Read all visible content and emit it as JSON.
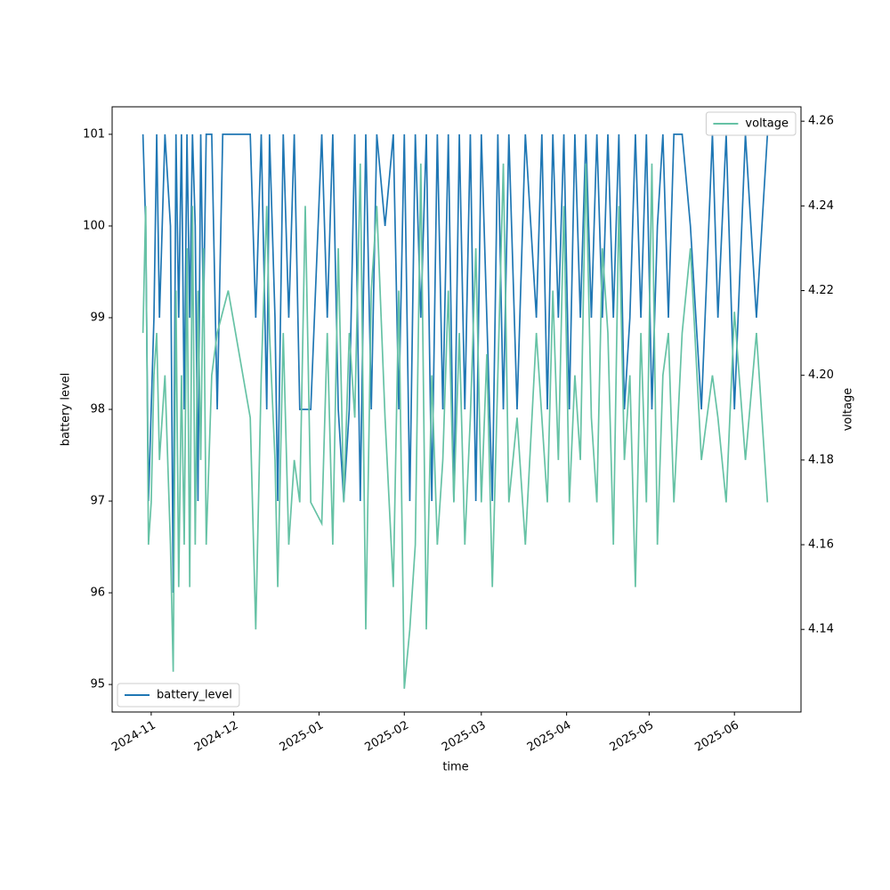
{
  "chart_data": {
    "type": "line",
    "xlabel": "time",
    "ylabel": "battery level",
    "y2label": "voltage",
    "xlim": [
      -14.2,
      236.2
    ],
    "xticks": [
      {
        "value": 0,
        "label": "2024-11"
      },
      {
        "value": 30,
        "label": "2024-12"
      },
      {
        "value": 61,
        "label": "2025-01"
      },
      {
        "value": 92,
        "label": "2025-02"
      },
      {
        "value": 120,
        "label": "2025-03"
      },
      {
        "value": 151,
        "label": "2025-04"
      },
      {
        "value": 181,
        "label": "2025-05"
      },
      {
        "value": 212,
        "label": "2025-06"
      }
    ],
    "ylim": [
      94.7,
      101.3
    ],
    "yticks": [
      95,
      96,
      97,
      98,
      99,
      100,
      101
    ],
    "y2lim": [
      4.1205,
      4.2634
    ],
    "y2ticks": [
      4.14,
      4.16,
      4.18,
      {
        "value": 4.2,
        "label": "4.20"
      },
      4.22,
      4.24,
      4.26
    ],
    "x": [
      -3,
      -2,
      -1,
      0,
      1,
      2,
      3,
      5,
      7,
      8,
      9,
      10,
      11,
      12,
      13,
      14,
      15,
      16,
      17,
      18,
      19,
      20,
      22,
      24,
      26,
      28,
      36,
      38,
      39,
      40,
      42,
      43,
      45,
      46,
      48,
      50,
      52,
      54,
      56,
      58,
      62,
      64,
      66,
      68,
      70,
      72,
      74,
      76,
      78,
      80,
      82,
      85,
      88,
      90,
      92,
      94,
      96,
      98,
      100,
      102,
      104,
      106,
      108,
      110,
      112,
      114,
      116,
      118,
      120,
      122,
      124,
      126,
      128,
      130,
      133,
      136,
      140,
      142,
      144,
      146,
      148,
      150,
      152,
      154,
      156,
      158,
      160,
      162,
      164,
      166,
      168,
      170,
      172,
      174,
      176,
      178,
      180,
      182,
      184,
      186,
      188,
      190,
      193,
      196,
      200,
      204,
      206,
      209,
      212,
      216,
      220,
      224
    ],
    "series": [
      {
        "name": "battery_level",
        "color": "#1f77b4",
        "legend": "lower left",
        "values": [
          101,
          100,
          97,
          98,
          99,
          101,
          99,
          101,
          100,
          96,
          101,
          99,
          101,
          98,
          101,
          99,
          101,
          100,
          97,
          101,
          99,
          101,
          101,
          98,
          101,
          101,
          101,
          99,
          100,
          101,
          98,
          101,
          99,
          97,
          101,
          99,
          101,
          98,
          98,
          98,
          101,
          99,
          101,
          98,
          97,
          98,
          101,
          97,
          101,
          98,
          101,
          100,
          101,
          98,
          101,
          97,
          101,
          99,
          101,
          97,
          101,
          98,
          101,
          97,
          101,
          98,
          101,
          97,
          101,
          99,
          97,
          101,
          98,
          101,
          98,
          101,
          99,
          101,
          98,
          101,
          99,
          101,
          98,
          101,
          99,
          101,
          99,
          101,
          99,
          101,
          99,
          101,
          98,
          99,
          101,
          99,
          101,
          98,
          100,
          101,
          99,
          101,
          101,
          100,
          98,
          101,
          99,
          101,
          98,
          101,
          99,
          101
        ]
      },
      {
        "name": "voltage",
        "color": "#66c2a5",
        "axis": "y2",
        "legend": "upper right",
        "values": [
          4.21,
          4.24,
          4.16,
          4.17,
          4.2,
          4.21,
          4.18,
          4.2,
          4.16,
          4.13,
          4.22,
          4.15,
          4.2,
          4.16,
          4.23,
          4.15,
          4.24,
          4.16,
          4.22,
          4.18,
          4.23,
          4.16,
          4.2,
          4.21,
          4.215,
          4.22,
          4.19,
          4.14,
          4.17,
          4.2,
          4.24,
          4.21,
          4.18,
          4.15,
          4.21,
          4.16,
          4.18,
          4.17,
          4.24,
          4.17,
          4.165,
          4.21,
          4.16,
          4.23,
          4.17,
          4.21,
          4.19,
          4.25,
          4.14,
          4.22,
          4.24,
          4.19,
          4.15,
          4.22,
          4.126,
          4.14,
          4.16,
          4.25,
          4.14,
          4.2,
          4.16,
          4.18,
          4.22,
          4.17,
          4.21,
          4.16,
          4.19,
          4.23,
          4.17,
          4.205,
          4.15,
          4.2,
          4.25,
          4.17,
          4.19,
          4.16,
          4.21,
          4.19,
          4.17,
          4.22,
          4.18,
          4.24,
          4.17,
          4.2,
          4.18,
          4.25,
          4.19,
          4.17,
          4.23,
          4.21,
          4.16,
          4.24,
          4.18,
          4.2,
          4.15,
          4.21,
          4.17,
          4.25,
          4.16,
          4.2,
          4.21,
          4.17,
          4.21,
          4.23,
          4.18,
          4.2,
          4.19,
          4.17,
          4.215,
          4.18,
          4.21,
          4.17
        ]
      }
    ]
  }
}
